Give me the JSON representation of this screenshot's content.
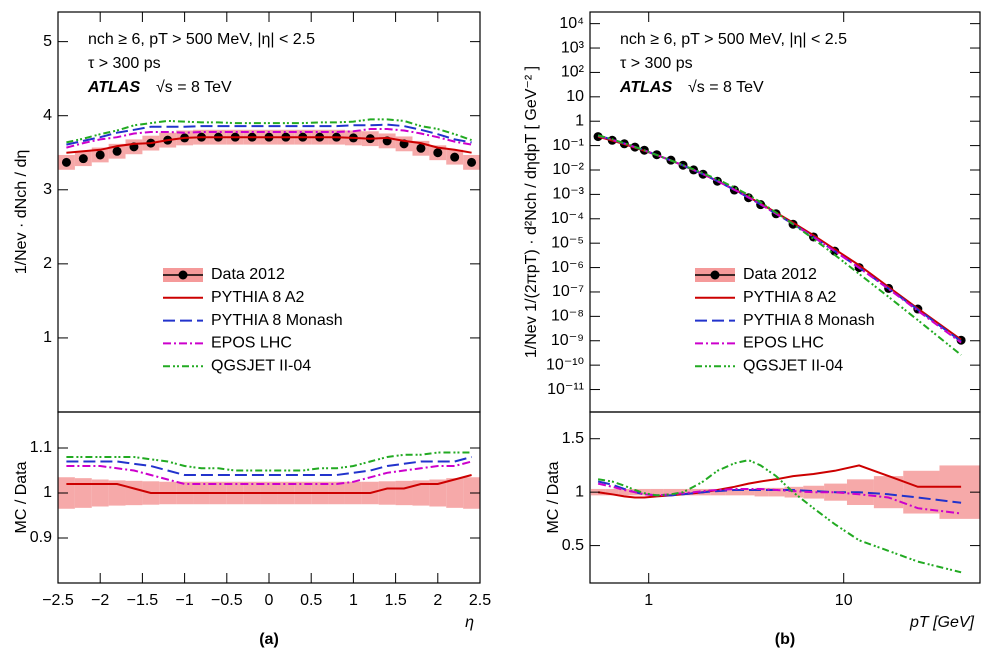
{
  "chart_data": [
    {
      "type": "line",
      "label": "(a)",
      "ylabel": "1/Nev · dNch / dη",
      "annotations": [
        "nch ≥ 6, pT > 500 MeV, |η| < 2.5",
        "τ > 300 ps",
        "ATLAS",
        "√s = 8 TeV"
      ],
      "legend": "lower left",
      "xlim": [
        -2.5,
        2.5
      ],
      "ylim": [
        0,
        5.4
      ],
      "yticks": [
        1,
        2,
        3,
        4,
        5
      ],
      "x": [
        -2.4,
        -2.2,
        -2.0,
        -1.8,
        -1.6,
        -1.4,
        -1.2,
        -1.0,
        -0.8,
        -0.6,
        -0.4,
        -0.2,
        0.0,
        0.2,
        0.4,
        0.6,
        0.8,
        1.0,
        1.2,
        1.4,
        1.6,
        1.8,
        2.0,
        2.2,
        2.4
      ],
      "series": [
        {
          "name": "Data 2012",
          "color": "#000000",
          "band_color": "#f59a9a",
          "marker": "circle",
          "values": [
            3.37,
            3.42,
            3.47,
            3.52,
            3.58,
            3.63,
            3.67,
            3.7,
            3.71,
            3.71,
            3.71,
            3.71,
            3.71,
            3.71,
            3.71,
            3.71,
            3.71,
            3.7,
            3.69,
            3.66,
            3.62,
            3.56,
            3.5,
            3.44,
            3.37
          ],
          "errors": [
            0.1,
            0.1,
            0.1,
            0.1,
            0.1,
            0.1,
            0.1,
            0.1,
            0.1,
            0.1,
            0.1,
            0.1,
            0.1,
            0.1,
            0.1,
            0.1,
            0.1,
            0.1,
            0.1,
            0.1,
            0.1,
            0.1,
            0.1,
            0.1,
            0.1
          ]
        },
        {
          "name": "PYTHIA 8 A2",
          "color": "#cc0000",
          "linestyle": "solid",
          "values": [
            3.5,
            3.52,
            3.54,
            3.59,
            3.62,
            3.63,
            3.67,
            3.7,
            3.71,
            3.71,
            3.71,
            3.71,
            3.71,
            3.71,
            3.71,
            3.71,
            3.71,
            3.7,
            3.69,
            3.7,
            3.66,
            3.63,
            3.57,
            3.54,
            3.5
          ]
        },
        {
          "name": "PYTHIA 8 Monash",
          "color": "#2233cc",
          "linestyle": "dashed",
          "values": [
            3.61,
            3.66,
            3.71,
            3.77,
            3.81,
            3.85,
            3.85,
            3.85,
            3.86,
            3.86,
            3.86,
            3.86,
            3.86,
            3.86,
            3.86,
            3.86,
            3.86,
            3.87,
            3.87,
            3.88,
            3.86,
            3.81,
            3.75,
            3.68,
            3.64
          ]
        },
        {
          "name": "EPOS LHC",
          "color": "#cc00cc",
          "linestyle": "dashdot",
          "values": [
            3.57,
            3.63,
            3.68,
            3.71,
            3.76,
            3.78,
            3.78,
            3.77,
            3.78,
            3.78,
            3.78,
            3.78,
            3.78,
            3.78,
            3.78,
            3.78,
            3.78,
            3.79,
            3.82,
            3.82,
            3.8,
            3.76,
            3.71,
            3.65,
            3.61
          ]
        },
        {
          "name": "QGSJET II-04",
          "color": "#22aa22",
          "linestyle": "dashdotdot",
          "values": [
            3.64,
            3.69,
            3.75,
            3.8,
            3.87,
            3.9,
            3.93,
            3.92,
            3.91,
            3.91,
            3.9,
            3.9,
            3.9,
            3.9,
            3.9,
            3.91,
            3.91,
            3.92,
            3.95,
            3.95,
            3.93,
            3.86,
            3.82,
            3.75,
            3.67
          ]
        }
      ]
    },
    {
      "type": "line",
      "ylabel": "MC / Data",
      "xlabel": "η",
      "xlim": [
        -2.5,
        2.5
      ],
      "ylim": [
        0.8,
        1.18
      ],
      "yticks": [
        0.9,
        1,
        1.1
      ],
      "xticks": [
        {
          "value": -2.5,
          "label": "−2.5"
        },
        {
          "value": -2,
          "label": "−2"
        },
        {
          "value": -1.5,
          "label": "−1.5"
        },
        {
          "value": -1,
          "label": "−1"
        },
        {
          "value": -0.5,
          "label": "−0.5"
        },
        0,
        0.5,
        1,
        1.5,
        2,
        2.5
      ],
      "x": [
        -2.4,
        -2.2,
        -2.0,
        -1.8,
        -1.6,
        -1.4,
        -1.2,
        -1.0,
        -0.8,
        -0.6,
        -0.4,
        -0.2,
        0.0,
        0.2,
        0.4,
        0.6,
        0.8,
        1.0,
        1.2,
        1.4,
        1.6,
        1.8,
        2.0,
        2.2,
        2.4
      ],
      "series": [
        {
          "color": "#f59a9a",
          "values": [
            1,
            1,
            1,
            1,
            1,
            1,
            1,
            1,
            1,
            1,
            1,
            1,
            1,
            1,
            1,
            1,
            1,
            1,
            1,
            1,
            1,
            1,
            1,
            1,
            1
          ],
          "errors": [
            0.035,
            0.033,
            0.03,
            0.028,
            0.027,
            0.026,
            0.025,
            0.025,
            0.025,
            0.025,
            0.025,
            0.025,
            0.025,
            0.025,
            0.025,
            0.025,
            0.025,
            0.025,
            0.025,
            0.026,
            0.027,
            0.028,
            0.03,
            0.033,
            0.035
          ]
        },
        {
          "color": "#cc0000",
          "linestyle": "solid",
          "values": [
            1.02,
            1.02,
            1.02,
            1.02,
            1.01,
            1.0,
            1.0,
            1.0,
            1.0,
            1.0,
            1.0,
            1.0,
            1.0,
            1.0,
            1.0,
            1.0,
            1.0,
            1.0,
            1.0,
            1.01,
            1.01,
            1.02,
            1.02,
            1.03,
            1.04
          ]
        },
        {
          "color": "#2233cc",
          "linestyle": "dashed",
          "values": [
            1.07,
            1.07,
            1.07,
            1.07,
            1.065,
            1.06,
            1.05,
            1.04,
            1.04,
            1.04,
            1.04,
            1.04,
            1.04,
            1.04,
            1.04,
            1.04,
            1.04,
            1.045,
            1.05,
            1.06,
            1.065,
            1.07,
            1.07,
            1.07,
            1.08
          ]
        },
        {
          "color": "#cc00cc",
          "linestyle": "dashdot",
          "values": [
            1.06,
            1.06,
            1.06,
            1.055,
            1.05,
            1.04,
            1.03,
            1.02,
            1.02,
            1.02,
            1.02,
            1.02,
            1.02,
            1.02,
            1.02,
            1.02,
            1.02,
            1.025,
            1.035,
            1.045,
            1.05,
            1.055,
            1.06,
            1.06,
            1.07
          ]
        },
        {
          "color": "#22aa22",
          "linestyle": "dashdotdot",
          "values": [
            1.08,
            1.08,
            1.08,
            1.08,
            1.08,
            1.075,
            1.07,
            1.06,
            1.055,
            1.055,
            1.05,
            1.05,
            1.05,
            1.05,
            1.05,
            1.055,
            1.055,
            1.06,
            1.07,
            1.08,
            1.085,
            1.085,
            1.09,
            1.09,
            1.09
          ]
        }
      ]
    },
    {
      "type": "line",
      "label": "(b)",
      "ylabel": "1/Nev 1/(2πpT) · d²Nch / dηdpT [ GeV⁻² ]",
      "annotations": [
        "nch ≥ 6, pT > 500 MeV, |η| < 2.5",
        "τ > 300 ps",
        "ATLAS",
        "√s = 8 TeV"
      ],
      "legend": "lower left",
      "xlog": true,
      "ylog": true,
      "xlim": [
        0.5,
        50
      ],
      "ylim": [
        1.2e-12,
        30000.0
      ],
      "yticks": [
        {
          "value": 1e-11,
          "label": "10⁻¹¹"
        },
        {
          "value": 1e-10,
          "label": "10⁻¹⁰"
        },
        {
          "value": 1e-09,
          "label": "10⁻⁹"
        },
        {
          "value": 1e-08,
          "label": "10⁻⁸"
        },
        {
          "value": 1e-07,
          "label": "10⁻⁷"
        },
        {
          "value": 1e-06,
          "label": "10⁻⁶"
        },
        {
          "value": 1e-05,
          "label": "10⁻⁵"
        },
        {
          "value": 0.0001,
          "label": "10⁻⁴"
        },
        {
          "value": 0.001,
          "label": "10⁻³"
        },
        {
          "value": 0.01,
          "label": "10⁻²"
        },
        {
          "value": 0.1,
          "label": "10⁻¹"
        },
        1,
        10,
        {
          "value": 100,
          "label": "10²"
        },
        {
          "value": 1000,
          "label": "10³"
        },
        {
          "value": 10000,
          "label": "10⁴"
        }
      ],
      "x": [
        0.55,
        0.65,
        0.75,
        0.85,
        0.95,
        1.1,
        1.3,
        1.5,
        1.7,
        1.9,
        2.25,
        2.75,
        3.25,
        3.75,
        4.5,
        5.5,
        7,
        9,
        12,
        17,
        24,
        40
      ],
      "series": [
        {
          "name": "Data 2012",
          "color": "#000000",
          "band_color": "#f59a9a",
          "marker": "circle",
          "values": [
            0.234,
            0.165,
            0.119,
            0.0867,
            0.0646,
            0.0424,
            0.0253,
            0.0157,
            0.0101,
            0.0067,
            0.00347,
            0.00151,
            0.00073,
            0.00038,
            0.00016,
            6e-05,
            1.8e-05,
            4.7e-06,
            1e-06,
            1.4e-07,
            2e-08,
            1.05e-09
          ]
        },
        {
          "name": "PYTHIA 8 A2",
          "color": "#cc0000",
          "linestyle": "solid",
          "values": [
            0.234,
            0.162,
            0.114,
            0.0824,
            0.0614,
            0.0407,
            0.0245,
            0.0154,
            0.01,
            0.0067,
            0.00354,
            0.00159,
            0.00079,
            0.00042,
            0.00018,
            6.9e-05,
            2.1e-05,
            5.6e-06,
            1.25e-06,
            1.6e-07,
            2.1e-08,
            1.1e-09
          ]
        },
        {
          "name": "PYTHIA 8 Monash",
          "color": "#2233cc",
          "linestyle": "dashed",
          "values": [
            0.257,
            0.177,
            0.123,
            0.0867,
            0.0633,
            0.0411,
            0.0245,
            0.0154,
            0.01,
            0.0067,
            0.0035,
            0.00154,
            0.00074,
            0.00039,
            0.00016,
            6.1e-05,
            1.8e-05,
            4.7e-06,
            1e-06,
            1.37e-07,
            1.9e-08,
            9.5e-10
          ]
        },
        {
          "name": "EPOS LHC",
          "color": "#cc00cc",
          "linestyle": "dashdot",
          "values": [
            0.253,
            0.173,
            0.121,
            0.0867,
            0.0633,
            0.0411,
            0.0248,
            0.0155,
            0.0101,
            0.0068,
            0.00354,
            0.00156,
            0.00075,
            0.00039,
            0.00016,
            6.1e-05,
            1.8e-05,
            4.7e-06,
            9.8e-07,
            1.33e-07,
            1.7e-08,
            8.4e-10
          ]
        },
        {
          "name": "QGSJET II-04",
          "color": "#22aa22",
          "linestyle": "dashdotdot",
          "values": [
            0.262,
            0.182,
            0.126,
            0.0884,
            0.064,
            0.0411,
            0.0248,
            0.0157,
            0.0106,
            0.0074,
            0.00416,
            0.00192,
            0.00095,
            0.00048,
            0.00018,
            6e-05,
            1.5e-05,
            3.3e-06,
            5.5e-07,
            6.3e-08,
            7e-09,
            2.6e-10
          ]
        }
      ]
    },
    {
      "type": "line",
      "ylabel": "MC / Data",
      "xlabel": "pT [GeV]",
      "xlog": true,
      "xlim": [
        0.5,
        50
      ],
      "ylim": [
        0.15,
        1.75
      ],
      "yticks": [
        0.5,
        1,
        1.5
      ],
      "xticks": [
        1,
        10
      ],
      "x": [
        0.55,
        0.65,
        0.75,
        0.85,
        0.95,
        1.1,
        1.3,
        1.5,
        1.7,
        1.9,
        2.25,
        2.75,
        3.25,
        3.75,
        4.5,
        5.5,
        7,
        9,
        12,
        17,
        24,
        40
      ],
      "series": [
        {
          "color": "#f59a9a",
          "values": [
            1,
            1,
            1,
            1,
            1,
            1,
            1,
            1,
            1,
            1,
            1,
            1,
            1,
            1,
            1,
            1,
            1,
            1,
            1,
            1,
            1,
            1
          ],
          "errors": [
            0.03,
            0.03,
            0.03,
            0.03,
            0.03,
            0.03,
            0.03,
            0.03,
            0.03,
            0.03,
            0.03,
            0.03,
            0.03,
            0.04,
            0.04,
            0.05,
            0.06,
            0.08,
            0.12,
            0.15,
            0.2,
            0.25
          ]
        },
        {
          "color": "#cc0000",
          "linestyle": "solid",
          "values": [
            1.0,
            0.98,
            0.96,
            0.95,
            0.95,
            0.96,
            0.97,
            0.98,
            0.99,
            1.0,
            1.02,
            1.05,
            1.08,
            1.1,
            1.12,
            1.15,
            1.17,
            1.2,
            1.25,
            1.15,
            1.05,
            1.05
          ]
        },
        {
          "color": "#2233cc",
          "linestyle": "dashed",
          "values": [
            1.1,
            1.07,
            1.03,
            1.0,
            0.98,
            0.97,
            0.97,
            0.98,
            0.99,
            1.0,
            1.01,
            1.02,
            1.02,
            1.02,
            1.02,
            1.02,
            1.01,
            1.0,
            1.0,
            0.98,
            0.95,
            0.9
          ]
        },
        {
          "color": "#cc00cc",
          "linestyle": "dashdot",
          "values": [
            1.08,
            1.05,
            1.02,
            1.0,
            0.98,
            0.97,
            0.98,
            0.99,
            1.0,
            1.01,
            1.02,
            1.03,
            1.03,
            1.03,
            1.02,
            1.01,
            1.0,
            1.0,
            0.98,
            0.95,
            0.85,
            0.8
          ]
        },
        {
          "color": "#22aa22",
          "linestyle": "dashdotdot",
          "values": [
            1.12,
            1.1,
            1.06,
            1.02,
            0.99,
            0.97,
            0.98,
            1.0,
            1.05,
            1.1,
            1.2,
            1.27,
            1.3,
            1.25,
            1.15,
            1.0,
            0.85,
            0.7,
            0.55,
            0.45,
            0.35,
            0.25
          ]
        }
      ]
    }
  ]
}
